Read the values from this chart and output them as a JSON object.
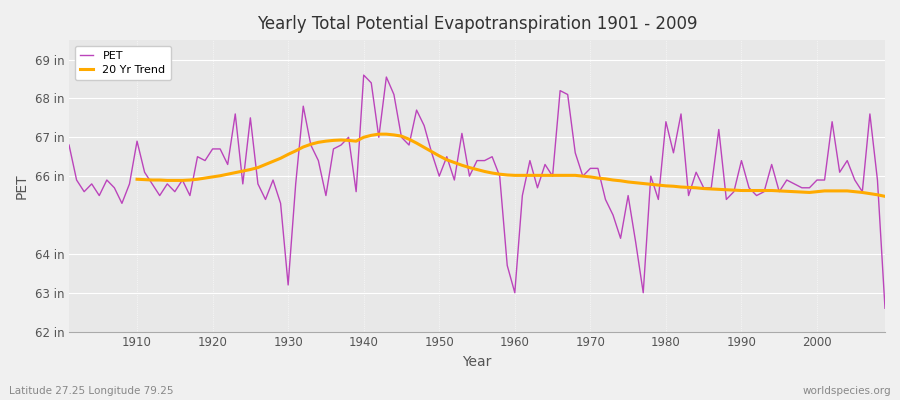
{
  "title": "Yearly Total Potential Evapotranspiration 1901 - 2009",
  "xlabel": "Year",
  "ylabel": "PET",
  "bottom_left": "Latitude 27.25 Longitude 79.25",
  "bottom_right": "worldspecies.org",
  "pet_color": "#bb44bb",
  "trend_color": "#ffaa00",
  "bg_color": "#f0f0f0",
  "plot_bg": "#e8e8e8",
  "ylim": [
    62.0,
    69.5
  ],
  "yticks": [
    62,
    63,
    64,
    66,
    67,
    68,
    69
  ],
  "ytick_labels": [
    "62 in",
    "63 in",
    "64 in",
    "66 in",
    "67 in",
    "68 in",
    "69 in"
  ],
  "years": [
    1901,
    1902,
    1903,
    1904,
    1905,
    1906,
    1907,
    1908,
    1909,
    1910,
    1911,
    1912,
    1913,
    1914,
    1915,
    1916,
    1917,
    1918,
    1919,
    1920,
    1921,
    1922,
    1923,
    1924,
    1925,
    1926,
    1927,
    1928,
    1929,
    1930,
    1931,
    1932,
    1933,
    1934,
    1935,
    1936,
    1937,
    1938,
    1939,
    1940,
    1941,
    1942,
    1943,
    1944,
    1945,
    1946,
    1947,
    1948,
    1949,
    1950,
    1951,
    1952,
    1953,
    1954,
    1955,
    1956,
    1957,
    1958,
    1959,
    1960,
    1961,
    1962,
    1963,
    1964,
    1965,
    1966,
    1967,
    1968,
    1969,
    1970,
    1971,
    1972,
    1973,
    1974,
    1975,
    1976,
    1977,
    1978,
    1979,
    1980,
    1981,
    1982,
    1983,
    1984,
    1985,
    1986,
    1987,
    1988,
    1989,
    1990,
    1991,
    1992,
    1993,
    1994,
    1995,
    1996,
    1997,
    1998,
    1999,
    2000,
    2001,
    2002,
    2003,
    2004,
    2005,
    2006,
    2007,
    2008,
    2009
  ],
  "pet_values": [
    66.8,
    65.9,
    65.6,
    65.8,
    65.5,
    65.9,
    65.7,
    65.3,
    65.8,
    66.9,
    66.1,
    65.8,
    65.5,
    65.8,
    65.6,
    65.9,
    65.5,
    66.5,
    66.4,
    66.7,
    66.7,
    66.3,
    67.6,
    65.8,
    67.5,
    65.8,
    65.4,
    65.9,
    65.3,
    63.2,
    65.8,
    67.8,
    66.8,
    66.4,
    65.5,
    66.7,
    66.8,
    67.0,
    65.6,
    68.6,
    68.4,
    67.0,
    68.55,
    68.1,
    67.0,
    66.8,
    67.7,
    67.3,
    66.6,
    66.0,
    66.5,
    65.9,
    67.1,
    66.0,
    66.4,
    66.4,
    66.5,
    66.0,
    63.7,
    63.0,
    65.5,
    66.4,
    65.7,
    66.3,
    66.0,
    68.2,
    68.1,
    66.6,
    66.0,
    66.2,
    66.2,
    65.4,
    65.0,
    64.4,
    65.5,
    64.3,
    63.0,
    66.0,
    65.4,
    67.4,
    66.6,
    67.6,
    65.5,
    66.1,
    65.7,
    65.7,
    67.2,
    65.4,
    65.6,
    66.4,
    65.7,
    65.5,
    65.6,
    66.3,
    65.6,
    65.9,
    65.8,
    65.7,
    65.7,
    65.9,
    65.9,
    67.4,
    66.1,
    66.4,
    65.9,
    65.6,
    67.6,
    65.9,
    62.6
  ],
  "trend_years": [
    1910,
    1911,
    1912,
    1913,
    1914,
    1915,
    1916,
    1917,
    1918,
    1919,
    1920,
    1921,
    1922,
    1923,
    1924,
    1925,
    1926,
    1927,
    1928,
    1929,
    1930,
    1931,
    1932,
    1933,
    1934,
    1935,
    1936,
    1937,
    1938,
    1939,
    1940,
    1941,
    1942,
    1943,
    1944,
    1945,
    1946,
    1947,
    1948,
    1949,
    1950,
    1951,
    1952,
    1953,
    1954,
    1955,
    1956,
    1957,
    1958,
    1959,
    1960,
    1961,
    1962,
    1963,
    1964,
    1965,
    1966,
    1967,
    1968,
    1969,
    1970,
    1971,
    1972,
    1973,
    1974,
    1975,
    1976,
    1977,
    1978,
    1979,
    1980,
    1981,
    1982,
    1983,
    1984,
    1985,
    1986,
    1987,
    1988,
    1989,
    1990,
    1991,
    1992,
    1993,
    1994,
    1995,
    1996,
    1997,
    1998,
    1999,
    2000,
    2001,
    2002,
    2003,
    2004,
    2005,
    2006,
    2007,
    2008,
    2009
  ],
  "trend_values": [
    65.92,
    65.91,
    65.9,
    65.9,
    65.89,
    65.89,
    65.89,
    65.9,
    65.92,
    65.95,
    65.98,
    66.01,
    66.05,
    66.09,
    66.13,
    66.17,
    66.22,
    66.3,
    66.38,
    66.46,
    66.56,
    66.65,
    66.75,
    66.82,
    66.87,
    66.9,
    66.92,
    66.93,
    66.92,
    66.9,
    67.0,
    67.05,
    67.08,
    67.08,
    67.06,
    67.03,
    66.95,
    66.85,
    66.74,
    66.63,
    66.52,
    66.42,
    66.35,
    66.28,
    66.22,
    66.17,
    66.12,
    66.08,
    66.05,
    66.03,
    66.02,
    66.02,
    66.02,
    66.02,
    66.02,
    66.02,
    66.02,
    66.02,
    66.02,
    66.0,
    65.98,
    65.95,
    65.93,
    65.9,
    65.88,
    65.85,
    65.83,
    65.81,
    65.79,
    65.77,
    65.75,
    65.74,
    65.72,
    65.71,
    65.7,
    65.68,
    65.67,
    65.66,
    65.65,
    65.64,
    65.63,
    65.63,
    65.63,
    65.63,
    65.63,
    65.62,
    65.61,
    65.6,
    65.59,
    65.58,
    65.6,
    65.62,
    65.62,
    65.62,
    65.62,
    65.6,
    65.58,
    65.55,
    65.52,
    65.48
  ]
}
